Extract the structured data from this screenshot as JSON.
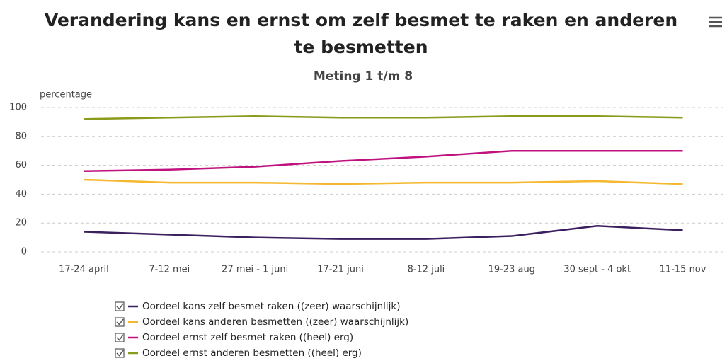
{
  "chart_data": {
    "type": "line",
    "title": "Verandering kans en ernst om zelf besmet te raken en anderen te besmetten",
    "subtitle": "Meting 1 t/m 8",
    "y_label": "percentage",
    "categories": [
      "17-24 april",
      "7-12 mei",
      "27 mei - 1 juni",
      "17-21 juni",
      "8-12 juli",
      "19-23 aug",
      "30 sept - 4 okt",
      "11-15 nov"
    ],
    "series": [
      {
        "name": "Oordeel kans zelf besmet raken ((zeer) waarschijnlijk)",
        "color": "#3b1f5e",
        "values": [
          14,
          12,
          10,
          9,
          9,
          11,
          18,
          15
        ]
      },
      {
        "name": "Oordeel kans anderen besmetten ((zeer) waarschijnlijk)",
        "color": "#f5b82e",
        "values": [
          50,
          48,
          48,
          47,
          48,
          48,
          49,
          47
        ]
      },
      {
        "name": "Oordeel ernst zelf besmet raken ((heel) erg)",
        "color": "#c0127f",
        "values": [
          56,
          57,
          59,
          63,
          66,
          70,
          70,
          70
        ]
      },
      {
        "name": "Oordeel ernst anderen besmetten ((heel) erg)",
        "color": "#8a9a1a",
        "values": [
          92,
          93,
          94,
          93,
          93,
          94,
          94,
          93
        ]
      }
    ],
    "ylim": [
      0,
      100
    ],
    "yticks": [
      0,
      20,
      40,
      60,
      80,
      100
    ],
    "grid": true
  }
}
